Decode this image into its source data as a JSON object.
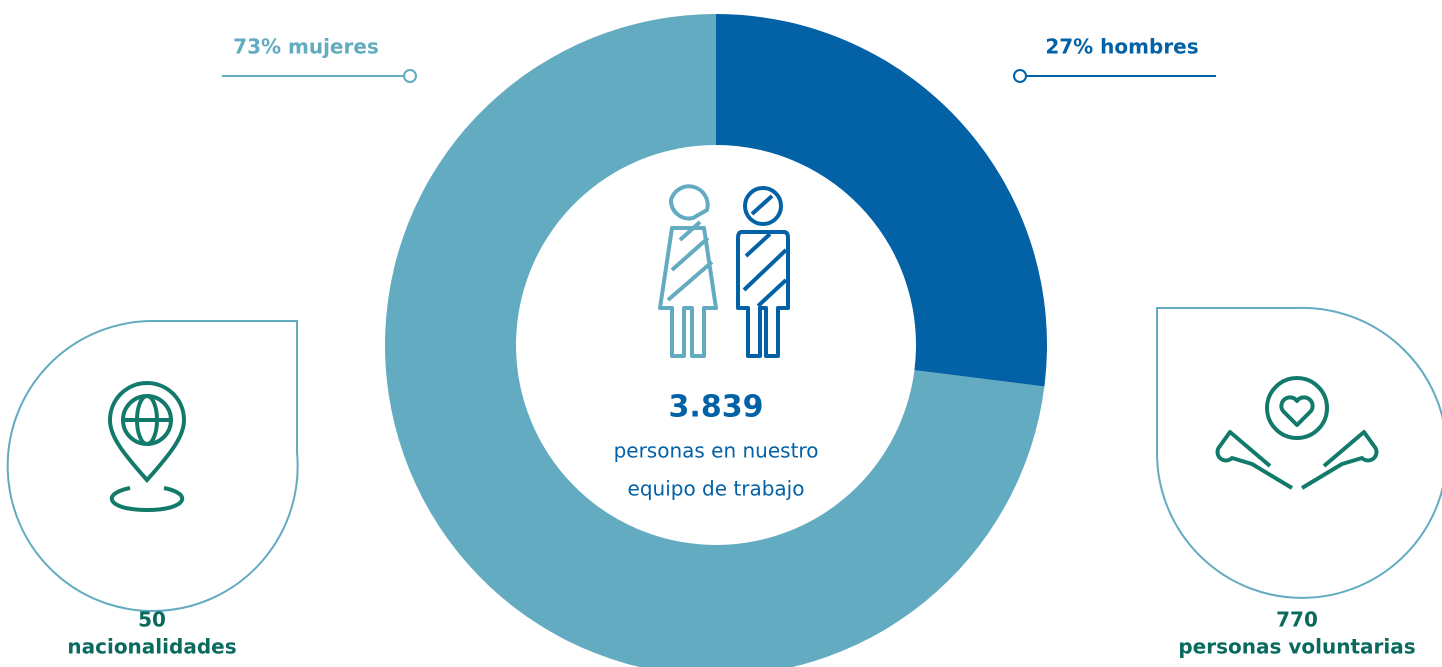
{
  "chart_data": {
    "type": "donut",
    "values": [
      73,
      27
    ],
    "value_labels": [
      "73% mujeres",
      "27% hombres"
    ],
    "colors": [
      "#62abc0",
      "#0361a6"
    ],
    "center_value": "3.839",
    "center_text": [
      "personas en nuestro",
      "equipo de trabajo"
    ]
  },
  "stats": [
    {
      "value": 50,
      "label": "nacionalidades"
    },
    {
      "value": 770,
      "label": "personas voluntarias"
    }
  ]
}
